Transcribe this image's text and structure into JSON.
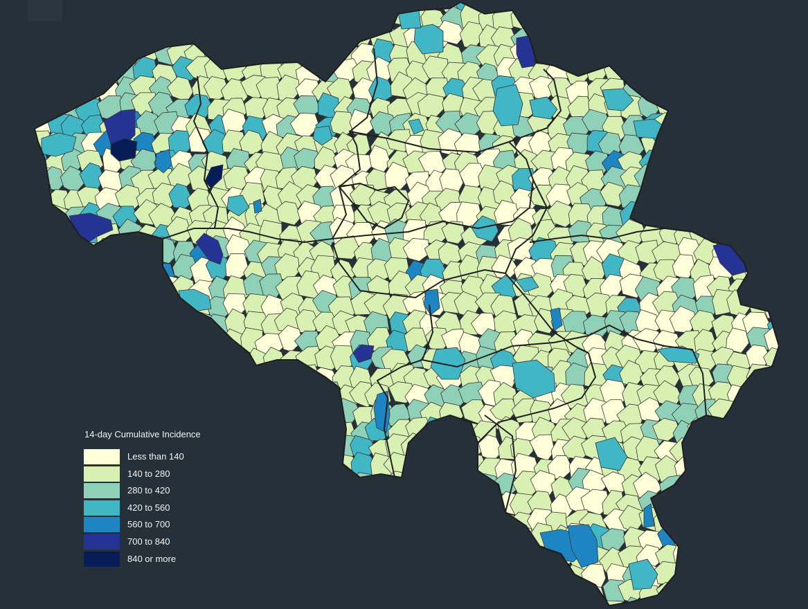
{
  "legend": {
    "title": "14-day Cumulative Incidence",
    "items": [
      {
        "label": "Less than 140",
        "color": "#ffffd9",
        "min": 0,
        "max": 140
      },
      {
        "label": "140 to 280",
        "color": "#d9f0b3",
        "min": 140,
        "max": 280
      },
      {
        "label": "280 to 420",
        "color": "#8fd1b8",
        "min": 280,
        "max": 420
      },
      {
        "label": "420 to 560",
        "color": "#41b6c4",
        "min": 420,
        "max": 560
      },
      {
        "label": "560 to 700",
        "color": "#1d86c2",
        "min": 560,
        "max": 700
      },
      {
        "label": "700 to 840",
        "color": "#253494",
        "min": 700,
        "max": 840
      },
      {
        "label": "840 or more",
        "color": "#081d58",
        "min": 840,
        "max": null
      }
    ]
  },
  "colors": {
    "background": "#263038",
    "municipality_border": "#333333",
    "province_border": "#1e1e1e"
  }
}
